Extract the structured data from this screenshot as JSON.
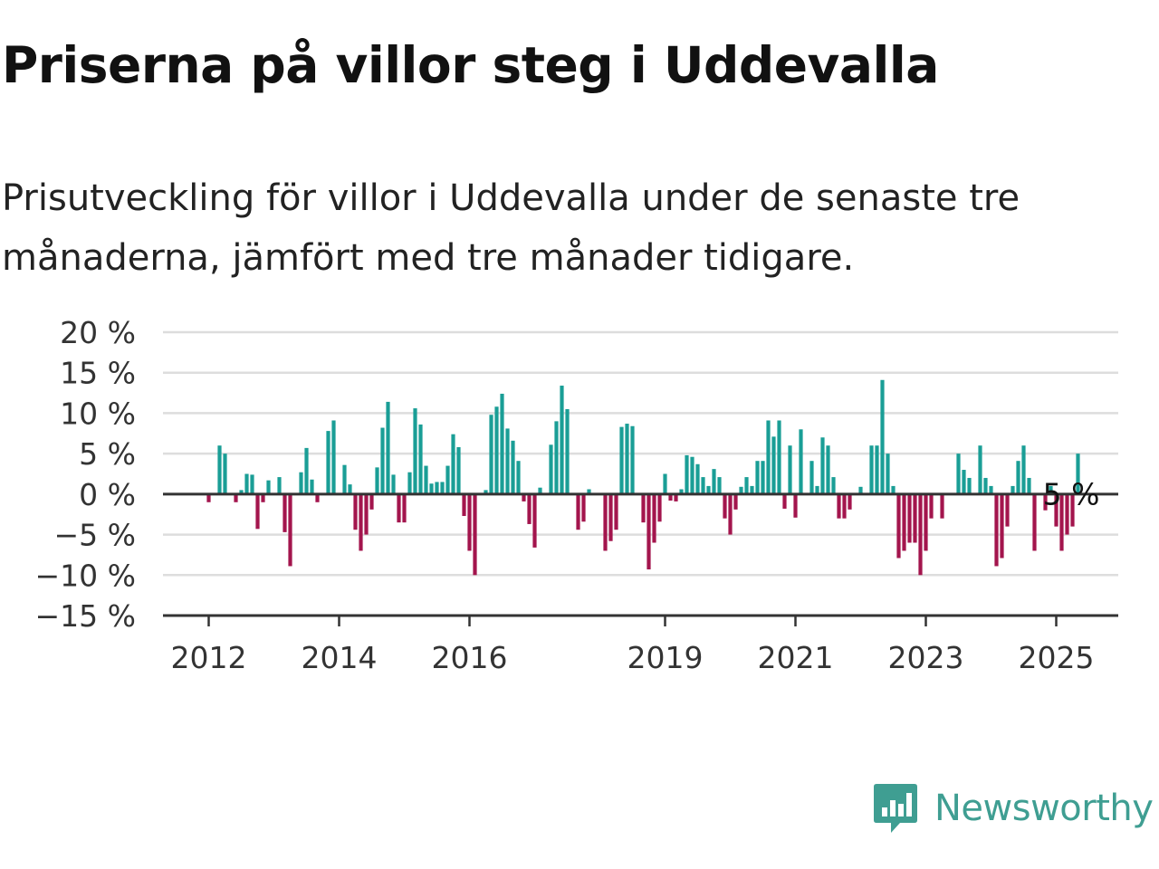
{
  "title": "Priserna på villor steg i Uddevalla",
  "subtitle": "Prisutveckling för villor i Uddevalla under de senaste tre månaderna, jämfört med tre månader tidigare.",
  "brand": {
    "name": "Newsworthy",
    "color": "#3f9e92"
  },
  "colors": {
    "positive": "#1a9e96",
    "negative": "#a3154d",
    "grid": "#dddddd",
    "axis": "#333333"
  },
  "chart_data": {
    "type": "bar",
    "title": "Priserna på villor steg i Uddevalla",
    "xlabel": "",
    "ylabel": "",
    "ylim": [
      -15,
      20
    ],
    "y_ticks": [
      20,
      15,
      10,
      5,
      0,
      -5,
      -10,
      -15
    ],
    "y_tick_labels": [
      "20 %",
      "15 %",
      "10 %",
      "5 %",
      "0 %",
      "−5 %",
      "−10 %",
      "−15 %"
    ],
    "x_ticks": [
      {
        "label": "2012",
        "index": 0
      },
      {
        "label": "2014",
        "index": 24
      },
      {
        "label": "2016",
        "index": 48
      },
      {
        "label": "2019",
        "index": 84
      },
      {
        "label": "2021",
        "index": 108
      },
      {
        "label": "2023",
        "index": 132
      },
      {
        "label": "2025",
        "index": 156
      }
    ],
    "grid": true,
    "legend": "none",
    "annotation": {
      "text": "5 %",
      "index": 159
    },
    "series": [
      {
        "values": [
          -1,
          0,
          6,
          5,
          0,
          -1,
          0.5,
          2.5,
          2.4,
          -4.3,
          -1,
          1.7,
          0,
          2.1,
          -4.7,
          -8.9,
          0,
          2.7,
          5.7,
          1.8,
          -1,
          0,
          7.8,
          9.1,
          0,
          3.6,
          1.2,
          -4.4,
          -7,
          -5,
          -1.9,
          3.3,
          8.2,
          11.4,
          2.4,
          -3.5,
          -3.5,
          2.7,
          10.6,
          8.6,
          3.5,
          1.3,
          1.5,
          1.5,
          3.5,
          7.4,
          5.8,
          -2.7,
          -7,
          -10,
          0,
          0.5,
          9.8,
          10.8,
          12.4,
          8.1,
          6.6,
          4.1,
          -0.9,
          -3.7,
          -6.6,
          0.8,
          0,
          6.1,
          9,
          13.4,
          10.5,
          0,
          -4.4,
          -3.4,
          0.6,
          0,
          0,
          -7,
          -5.8,
          -4.4,
          8.3,
          8.7,
          8.4,
          0,
          -3.5,
          -9.3,
          -6,
          -3.4,
          2.5,
          -0.8,
          -0.9,
          0.6,
          4.8,
          4.6,
          3.7,
          2.1,
          1,
          3.1,
          2.1,
          -3,
          -5,
          -1.9,
          0.9,
          2.1,
          1,
          4.1,
          4.1,
          9.1,
          7.1,
          9.1,
          -1.8,
          6,
          -2.9,
          8,
          0,
          4.1,
          1,
          7,
          6,
          2.1,
          -3,
          -3,
          -1.9,
          0,
          0.9,
          0,
          6,
          6,
          14.1,
          5,
          1,
          -7.9,
          -7,
          -6,
          -6,
          -10,
          -7,
          -3,
          0,
          -3,
          0,
          0,
          5,
          3,
          2,
          0,
          6,
          2,
          1,
          -8.9,
          -7.9,
          -4,
          1,
          4.1,
          6,
          2,
          -7,
          0,
          -2,
          1,
          -4,
          -7,
          -5,
          -4,
          5
        ]
      }
    ]
  }
}
